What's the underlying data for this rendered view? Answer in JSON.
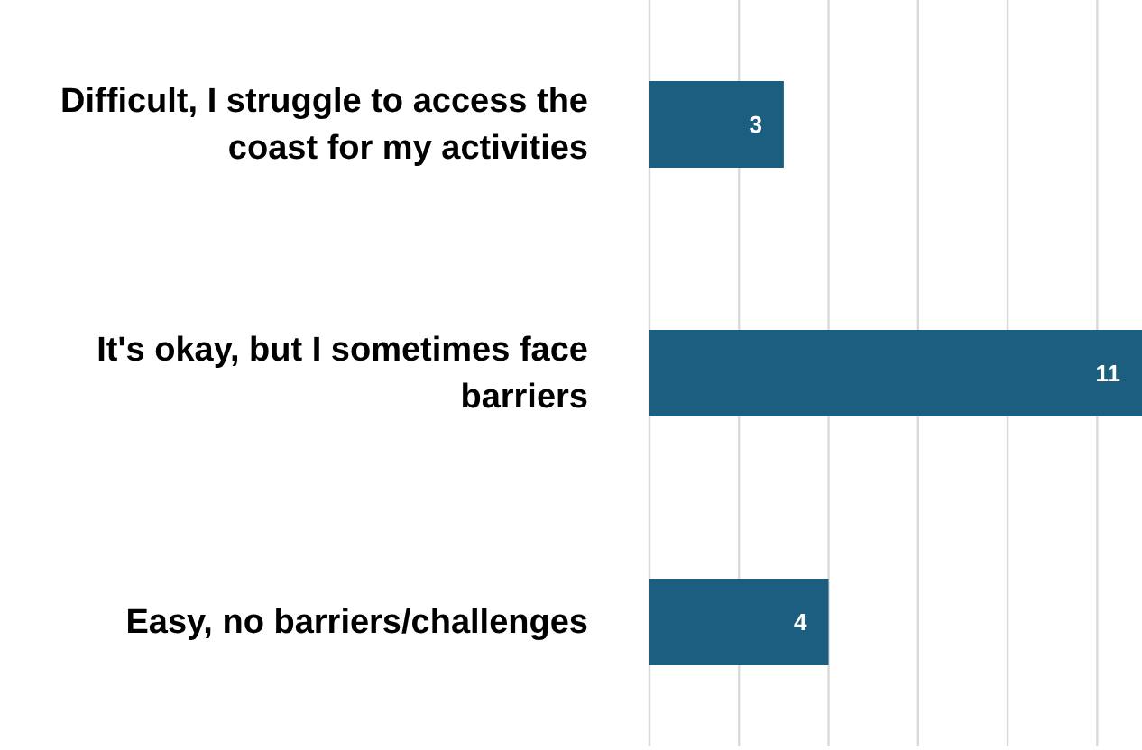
{
  "chart_data": {
    "type": "bar",
    "orientation": "horizontal",
    "categories": [
      "Difficult, I struggle to access the coast for my activities",
      "It's okay, but I sometimes face barriers",
      "Easy, no barriers/challenges"
    ],
    "values": [
      3,
      11,
      4
    ],
    "color": "#1b5e80",
    "data_labels": true,
    "grid": "x",
    "tick_labels": "y",
    "xlim": [
      0,
      11
    ],
    "xticks": [
      {
        "value": 0,
        "label": null
      },
      {
        "value": 2,
        "label": null
      },
      {
        "value": 4,
        "label": null
      },
      {
        "value": 6,
        "label": null
      },
      {
        "value": 8,
        "label": null
      },
      {
        "value": 10,
        "label": null
      }
    ]
  }
}
